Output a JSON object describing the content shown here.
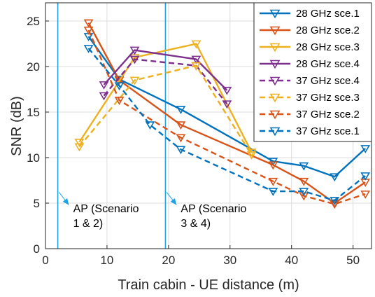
{
  "chart_data": {
    "type": "line",
    "title": "",
    "xlabel": "Train cabin - UE distance (m)",
    "ylabel": "SNR (dB)",
    "xlim": [
      0,
      53
    ],
    "ylim": [
      0,
      27
    ],
    "xticks": [
      0,
      10,
      20,
      30,
      40,
      50
    ],
    "yticks": [
      0,
      5,
      10,
      15,
      20,
      25
    ],
    "grid": true,
    "legend_position": "top-right",
    "series": [
      {
        "name": "28 GHz sce.1",
        "color": "#0072BD",
        "dash": false,
        "x": [
          7,
          12,
          22,
          37,
          42,
          47,
          52
        ],
        "y": [
          23.3,
          18.6,
          15.3,
          9.6,
          9.1,
          7.9,
          11.0
        ]
      },
      {
        "name": "28 GHz sce.2",
        "color": "#D95319",
        "dash": false,
        "x": [
          7,
          12,
          22,
          37,
          42,
          47,
          52
        ],
        "y": [
          24.8,
          18.5,
          13.6,
          9.2,
          7.4,
          5.0,
          7.3
        ]
      },
      {
        "name": "28 GHz sce.3",
        "color": "#EDB120",
        "dash": false,
        "x": [
          5.5,
          14.5,
          24.5,
          33.5
        ],
        "y": [
          11.7,
          21.0,
          22.5,
          10.6
        ]
      },
      {
        "name": "28 GHz sce.4",
        "color": "#7E2F8E",
        "dash": false,
        "x": [
          9.5,
          14.5,
          24.5,
          29.5
        ],
        "y": [
          18.0,
          21.8,
          20.8,
          17.4
        ]
      },
      {
        "name": "37 GHz sce.4",
        "color": "#7E2F8E",
        "dash": true,
        "x": [
          9.5,
          14.5,
          24.5,
          29.5
        ],
        "y": [
          16.8,
          20.8,
          20.1,
          15.9
        ]
      },
      {
        "name": "37 GHz sce.3",
        "color": "#EDB120",
        "dash": true,
        "x": [
          5.5,
          14.5,
          24.5,
          33.5
        ],
        "y": [
          11.2,
          18.5,
          20.1,
          10.3
        ]
      },
      {
        "name": "37 GHz sce.2",
        "color": "#D95319",
        "dash": true,
        "x": [
          7,
          12,
          22,
          37,
          42,
          47,
          52
        ],
        "y": [
          24.0,
          16.3,
          12.2,
          7.4,
          5.8,
          4.9,
          6.0
        ]
      },
      {
        "name": "37 GHz sce.1",
        "color": "#0072BD",
        "dash": true,
        "x": [
          7,
          12,
          17,
          22,
          37,
          42,
          47,
          52
        ],
        "y": [
          22.0,
          17.9,
          13.6,
          10.9,
          6.3,
          6.3,
          5.3,
          8.0
        ]
      }
    ],
    "vlines": [
      {
        "x": 2,
        "color": "#1EA3E6"
      },
      {
        "x": 19.5,
        "color": "#1EA3E6"
      }
    ],
    "annotations": [
      {
        "lines": [
          "AP (Scenario",
          "1 & 2)"
        ],
        "x": 4.5,
        "y": 4.0,
        "arrow_from": [
          2.2,
          6.2
        ],
        "arrow_to": [
          3.8,
          4.8
        ]
      },
      {
        "lines": [
          "AP (Scenario",
          "3 & 4)"
        ],
        "x": 22.0,
        "y": 4.0,
        "arrow_from": [
          19.7,
          6.2
        ],
        "arrow_to": [
          21.3,
          4.8
        ]
      }
    ]
  }
}
